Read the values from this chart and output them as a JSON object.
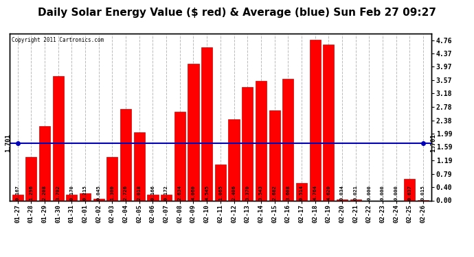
{
  "title": "Daily Solar Energy Value ($ red) & Average (blue) Sun Feb 27 09:27",
  "copyright": "Copyright 2011 Cartronics.com",
  "average": 1.701,
  "categories": [
    "01-27",
    "01-28",
    "01-29",
    "01-30",
    "01-31",
    "02-01",
    "02-02",
    "02-03",
    "02-04",
    "02-05",
    "02-06",
    "02-07",
    "02-08",
    "02-09",
    "02-10",
    "02-11",
    "02-12",
    "02-13",
    "02-14",
    "02-15",
    "02-16",
    "02-17",
    "02-18",
    "02-19",
    "02-20",
    "02-21",
    "02-22",
    "02-23",
    "02-24",
    "02-25",
    "02-26"
  ],
  "values": [
    0.167,
    1.296,
    2.208,
    3.702,
    0.17,
    0.215,
    0.045,
    1.3,
    2.726,
    2.018,
    0.166,
    0.172,
    2.634,
    4.06,
    4.545,
    1.065,
    2.406,
    3.37,
    3.543,
    2.682,
    3.608,
    0.514,
    4.764,
    4.62,
    0.034,
    0.021,
    0.0,
    0.0,
    0.0,
    0.637,
    0.015
  ],
  "bar_color": "#FF0000",
  "line_color": "#0000BB",
  "bg_color": "#FFFFFF",
  "plot_bg_color": "#FFFFFF",
  "grid_color": "#BBBBBB",
  "yticks_right": [
    0.0,
    0.4,
    0.79,
    1.19,
    1.59,
    1.99,
    2.38,
    2.78,
    3.18,
    3.57,
    3.97,
    4.37,
    4.76
  ],
  "ylim": [
    0,
    4.96
  ],
  "title_fontsize": 11,
  "label_fontsize": 6.5,
  "bar_label_fontsize": 5.2,
  "avg_label": "1.701",
  "bar_width": 0.82
}
